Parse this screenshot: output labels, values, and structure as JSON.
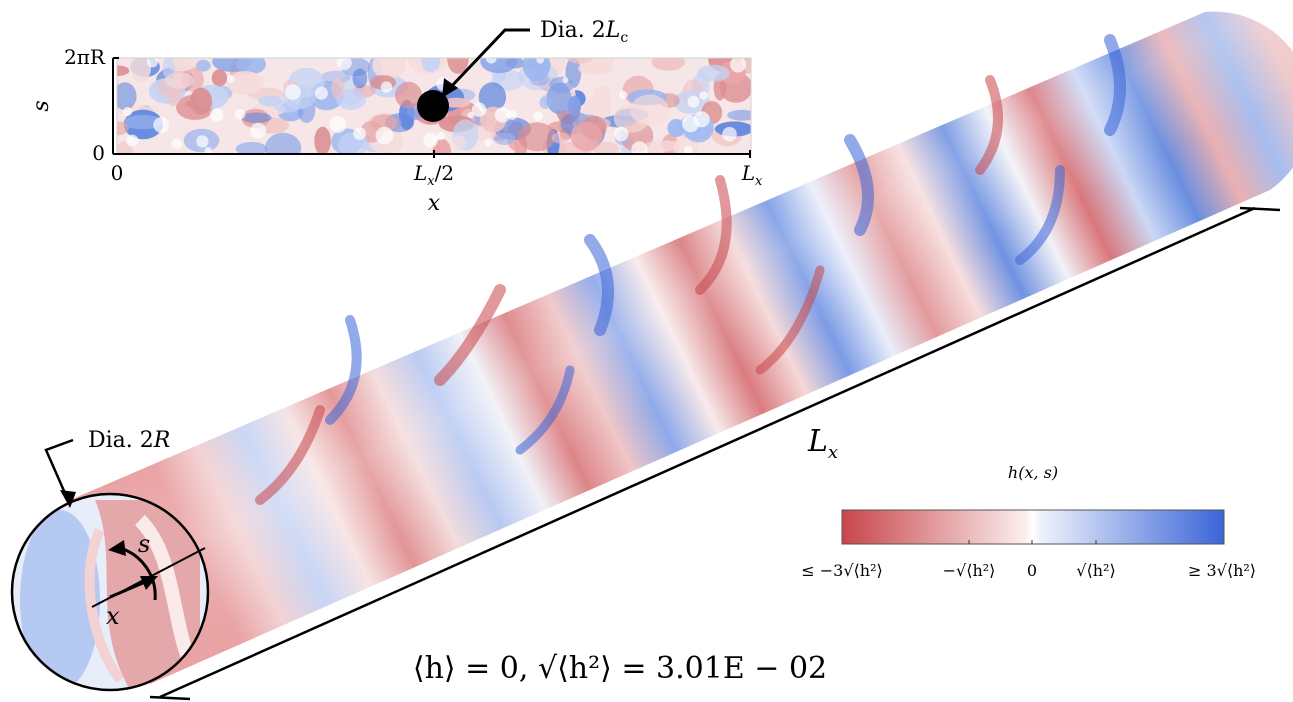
{
  "inset": {
    "y_top_label": "2πR",
    "y_bottom_label": "0",
    "y_axis_label": "s",
    "x_left_label": "0",
    "x_mid_label": "L",
    "x_mid_sub": "x",
    "x_mid_suffix": "/2",
    "x_right_label": "L",
    "x_right_sub": "x",
    "x_axis_label": "x",
    "callout_prefix": "Dia. 2",
    "callout_var": "L",
    "callout_sub": "c"
  },
  "cylinder": {
    "length_label": "L",
    "length_sub": "x",
    "diameter_prefix": "Dia. 2",
    "diameter_var": "R",
    "s_label": "s",
    "x_label": "x"
  },
  "colorbar": {
    "title": "h(x, s)",
    "ticks": [
      "≤ −3√⟨h²⟩",
      "−√⟨h²⟩",
      "0",
      "√⟨h²⟩",
      "≥ 3√⟨h²⟩"
    ],
    "colors": {
      "low": "#c8454a",
      "mid": "#ffffff",
      "high": "#3a64d8"
    }
  },
  "stats": {
    "text": "⟨h⟩ = 0,  √⟨h²⟩ = 3.01E − 02"
  }
}
